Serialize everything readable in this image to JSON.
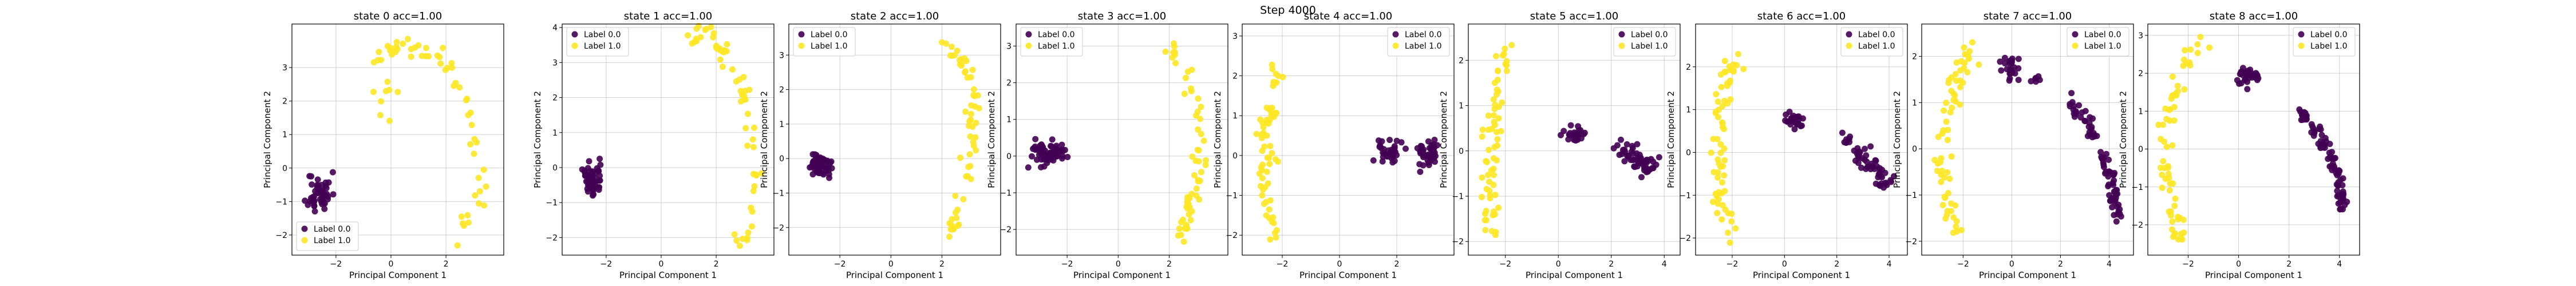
{
  "figure": {
    "suptitle": "Step 4000"
  },
  "colors": {
    "label_0": "#440154",
    "label_1": "#fde725",
    "grid": "#b0b0b0",
    "frame": "#000000",
    "legend_edge": "#cccccc"
  },
  "chart_data": [
    {
      "type": "scatter",
      "title": "state 0 acc=1.00",
      "xlabel": "Principal Component 1",
      "ylabel": "Principal Component 2",
      "xlim": [
        -3.6,
        4.1
      ],
      "ylim": [
        -2.6,
        4.3
      ],
      "xticks": [
        -2,
        0,
        2
      ],
      "yticks": [
        -2,
        -1,
        0,
        1,
        2,
        3
      ],
      "grid": true,
      "legend": {
        "placement": "lower-left",
        "entries": [
          "Label 0.0",
          "Label 1.0"
        ]
      },
      "series": [
        {
          "name": "Label 0.0",
          "color": "#440154",
          "clusters": [
            {
              "cx": -2.6,
              "cy": -0.75,
              "sx": 0.3,
              "sy": 0.45,
              "n": 48,
              "seed": 11
            }
          ]
        },
        {
          "name": "Label 1.0",
          "color": "#fde725",
          "clusters": [
            {
              "path": [
                [
                  -0.5,
                  3.2
                ],
                [
                  0.4,
                  3.7
                ],
                [
                  1.3,
                  3.4
                ],
                [
                  2.2,
                  3.0
                ],
                [
                  2.9,
                  1.6
                ],
                [
                  3.3,
                  0.3
                ],
                [
                  3.2,
                  -1.0
                ],
                [
                  2.6,
                  -2.0
                ]
              ],
              "spread": 0.25,
              "n": 55,
              "seed": 21
            },
            {
              "cx": -0.3,
              "cy": 2.2,
              "sx": 0.35,
              "sy": 0.6,
              "n": 8,
              "seed": 22
            }
          ]
        }
      ]
    },
    {
      "type": "scatter",
      "title": "state 1 acc=1.00",
      "xlabel": "Principal Component 1",
      "ylabel": "Principal Component 2",
      "xlim": [
        -3.6,
        4.1
      ],
      "ylim": [
        -2.5,
        4.1
      ],
      "xticks": [
        -2,
        0,
        2
      ],
      "yticks": [
        -2,
        -1,
        0,
        1,
        2,
        3,
        4
      ],
      "grid": true,
      "legend": {
        "placement": "upper-left",
        "entries": [
          "Label 0.0",
          "Label 1.0"
        ]
      },
      "series": [
        {
          "name": "Label 0.0",
          "color": "#440154",
          "clusters": [
            {
              "cx": -2.55,
              "cy": -0.35,
              "sx": 0.28,
              "sy": 0.35,
              "n": 48,
              "seed": 31
            }
          ]
        },
        {
          "name": "Label 1.0",
          "color": "#fde725",
          "clusters": [
            {
              "path": [
                [
                  0.8,
                  3.7
                ],
                [
                  1.6,
                  3.8
                ],
                [
                  2.3,
                  3.3
                ],
                [
                  2.9,
                  2.3
                ],
                [
                  3.3,
                  1.0
                ],
                [
                  3.4,
                  -0.5
                ],
                [
                  3.2,
                  -1.8
                ],
                [
                  2.6,
                  -2.3
                ]
              ],
              "spread": 0.25,
              "n": 60,
              "seed": 41
            }
          ]
        }
      ]
    },
    {
      "type": "scatter",
      "title": "state 2 acc=1.00",
      "xlabel": "Principal Component 1",
      "ylabel": "Principal Component 2",
      "xlim": [
        -4.0,
        4.3
      ],
      "ylim": [
        -2.8,
        3.9
      ],
      "xticks": [
        -2,
        0,
        2
      ],
      "yticks": [
        -2,
        -1,
        0,
        1,
        2,
        3
      ],
      "grid": true,
      "legend": {
        "placement": "upper-left",
        "entries": [
          "Label 0.0",
          "Label 1.0"
        ]
      },
      "series": [
        {
          "name": "Label 0.0",
          "color": "#440154",
          "clusters": [
            {
              "cx": -2.8,
              "cy": -0.2,
              "sx": 0.35,
              "sy": 0.25,
              "n": 60,
              "seed": 51
            }
          ]
        },
        {
          "name": "Label 1.0",
          "color": "#fde725",
          "clusters": [
            {
              "path": [
                [
                  2.0,
                  3.3
                ],
                [
                  2.7,
                  3.0
                ],
                [
                  3.2,
                  2.0
                ],
                [
                  3.3,
                  0.8
                ],
                [
                  3.0,
                  -0.5
                ],
                [
                  2.6,
                  -1.5
                ],
                [
                  2.2,
                  -2.3
                ]
              ],
              "spread": 0.25,
              "n": 60,
              "seed": 61
            }
          ]
        }
      ]
    },
    {
      "type": "scatter",
      "title": "state 3 acc=1.00",
      "xlabel": "Principal Component 1",
      "ylabel": "Principal Component 2",
      "xlim": [
        -4.0,
        4.3
      ],
      "ylim": [
        -2.7,
        3.6
      ],
      "xticks": [
        -2,
        0,
        2
      ],
      "yticks": [
        -2,
        -1,
        0,
        1,
        2,
        3
      ],
      "grid": true,
      "legend": {
        "placement": "upper-left",
        "entries": [
          "Label 0.0",
          "Label 1.0"
        ]
      },
      "series": [
        {
          "name": "Label 0.0",
          "color": "#440154",
          "clusters": [
            {
              "cx": -2.7,
              "cy": 0.05,
              "sx": 0.55,
              "sy": 0.25,
              "n": 70,
              "seed": 71
            }
          ]
        },
        {
          "name": "Label 1.0",
          "color": "#fde725",
          "clusters": [
            {
              "path": [
                [
                  2.0,
                  2.9
                ],
                [
                  2.8,
                  2.3
                ],
                [
                  3.1,
                  1.0
                ],
                [
                  3.2,
                  -0.5
                ],
                [
                  2.8,
                  -1.5
                ],
                [
                  2.4,
                  -2.3
                ]
              ],
              "spread": 0.25,
              "n": 60,
              "seed": 81
            }
          ]
        }
      ]
    },
    {
      "type": "scatter",
      "title": "state 4 acc=1.00",
      "xlabel": "Principal Component 1",
      "ylabel": "Principal Component 2",
      "xlim": [
        -3.4,
        4.0
      ],
      "ylim": [
        -2.5,
        3.3
      ],
      "xticks": [
        -2,
        0,
        2
      ],
      "yticks": [
        -2,
        -1,
        0,
        1,
        2,
        3
      ],
      "grid": true,
      "legend": {
        "placement": "upper-right",
        "entries": [
          "Label 0.0",
          "Label 1.0"
        ]
      },
      "series": [
        {
          "name": "Label 0.0",
          "color": "#440154",
          "clusters": [
            {
              "cx": 1.7,
              "cy": 0.1,
              "sx": 0.3,
              "sy": 0.2,
              "n": 35,
              "seed": 91
            },
            {
              "cx": 3.1,
              "cy": 0.0,
              "sx": 0.35,
              "sy": 0.25,
              "n": 40,
              "seed": 92
            }
          ]
        },
        {
          "name": "Label 1.0",
          "color": "#fde725",
          "clusters": [
            {
              "path": [
                [
                  -2.1,
                  2.8
                ],
                [
                  -2.3,
                  1.5
                ],
                [
                  -2.6,
                  0.5
                ],
                [
                  -2.7,
                  -0.5
                ],
                [
                  -2.5,
                  -1.5
                ],
                [
                  -2.2,
                  -2.2
                ]
              ],
              "spread": 0.25,
              "n": 65,
              "seed": 101
            }
          ]
        }
      ]
    },
    {
      "type": "scatter",
      "title": "state 5 acc=1.00",
      "xlabel": "Principal Component 1",
      "ylabel": "Principal Component 2",
      "xlim": [
        -3.4,
        4.6
      ],
      "ylim": [
        -2.3,
        2.8
      ],
      "xticks": [
        -2,
        0,
        2,
        4
      ],
      "yticks": [
        -2,
        -1,
        0,
        1,
        2
      ],
      "grid": true,
      "legend": {
        "placement": "upper-right",
        "entries": [
          "Label 0.0",
          "Label 1.0"
        ]
      },
      "series": [
        {
          "name": "Label 0.0",
          "color": "#440154",
          "clusters": [
            {
              "cx": 0.6,
              "cy": 0.35,
              "sx": 0.3,
              "sy": 0.15,
              "n": 30,
              "seed": 111
            },
            {
              "path": [
                [
                  2.3,
                  0.1
                ],
                [
                  3.0,
                  -0.2
                ],
                [
                  3.6,
                  -0.4
                ]
              ],
              "spread": 0.25,
              "n": 55,
              "seed": 112
            }
          ]
        },
        {
          "name": "Label 1.0",
          "color": "#fde725",
          "clusters": [
            {
              "path": [
                [
                  -2.0,
                  2.4
                ],
                [
                  -2.2,
                  1.3
                ],
                [
                  -2.6,
                  0.2
                ],
                [
                  -2.7,
                  -0.8
                ],
                [
                  -2.3,
                  -1.8
                ]
              ],
              "spread": 0.3,
              "n": 65,
              "seed": 121
            }
          ]
        }
      ]
    },
    {
      "type": "scatter",
      "title": "state 6 acc=1.00",
      "xlabel": "Principal Component 1",
      "ylabel": "Principal Component 2",
      "xlim": [
        -3.4,
        4.7
      ],
      "ylim": [
        -2.4,
        3.0
      ],
      "xticks": [
        -2,
        0,
        2,
        4
      ],
      "yticks": [
        -2,
        -1,
        0,
        1,
        2
      ],
      "grid": true,
      "legend": {
        "placement": "upper-right",
        "entries": [
          "Label 0.0",
          "Label 1.0"
        ]
      },
      "series": [
        {
          "name": "Label 0.0",
          "color": "#440154",
          "clusters": [
            {
              "cx": 0.3,
              "cy": 0.75,
              "sx": 0.3,
              "sy": 0.12,
              "n": 25,
              "seed": 131
            },
            {
              "path": [
                [
                  2.3,
                  0.3
                ],
                [
                  3.0,
                  -0.1
                ],
                [
                  3.6,
                  -0.4
                ],
                [
                  3.9,
                  -0.7
                ]
              ],
              "spread": 0.22,
              "n": 55,
              "seed": 132
            }
          ]
        },
        {
          "name": "Label 1.0",
          "color": "#fde725",
          "clusters": [
            {
              "path": [
                [
                  -1.9,
                  2.4
                ],
                [
                  -2.3,
                  1.2
                ],
                [
                  -2.6,
                  0.0
                ],
                [
                  -2.5,
                  -1.0
                ],
                [
                  -2.1,
                  -2.0
                ]
              ],
              "spread": 0.3,
              "n": 65,
              "seed": 141
            }
          ]
        }
      ]
    },
    {
      "type": "scatter",
      "title": "state 7 acc=1.00",
      "xlabel": "Principal Component 1",
      "ylabel": "Principal Component 2",
      "xlim": [
        -3.7,
        5.0
      ],
      "ylim": [
        -2.3,
        2.7
      ],
      "xticks": [
        -2,
        0,
        2,
        4
      ],
      "yticks": [
        -2,
        -1,
        0,
        1,
        2
      ],
      "grid": true,
      "legend": {
        "placement": "upper-right",
        "entries": [
          "Label 0.0",
          "Label 1.0"
        ]
      },
      "series": [
        {
          "name": "Label 0.0",
          "color": "#440154",
          "clusters": [
            {
              "cx": 0.0,
              "cy": 1.75,
              "sx": 0.25,
              "sy": 0.15,
              "n": 25,
              "seed": 151
            },
            {
              "cx": 1.0,
              "cy": 1.5,
              "sx": 0.15,
              "sy": 0.1,
              "n": 6,
              "seed": 152
            },
            {
              "path": [
                [
                  2.4,
                  1.0
                ],
                [
                  3.2,
                  0.5
                ],
                [
                  3.8,
                  -0.2
                ],
                [
                  4.2,
                  -1.0
                ],
                [
                  4.4,
                  -1.5
                ]
              ],
              "spread": 0.18,
              "n": 80,
              "seed": 153
            }
          ]
        },
        {
          "name": "Label 1.0",
          "color": "#fde725",
          "clusters": [
            {
              "path": [
                [
                  -1.7,
                  2.2
                ],
                [
                  -2.3,
                  1.4
                ],
                [
                  -2.8,
                  0.5
                ],
                [
                  -2.9,
                  -0.5
                ],
                [
                  -2.6,
                  -1.2
                ],
                [
                  -2.2,
                  -2.0
                ]
              ],
              "spread": 0.3,
              "n": 65,
              "seed": 161
            }
          ]
        }
      ]
    },
    {
      "type": "scatter",
      "title": "state 8 acc=1.00",
      "xlabel": "Principal Component 1",
      "ylabel": "Principal Component 2",
      "xlim": [
        -3.6,
        4.8
      ],
      "ylim": [
        -2.8,
        3.3
      ],
      "xticks": [
        -2,
        0,
        2,
        4
      ],
      "yticks": [
        -2,
        -1,
        0,
        1,
        2,
        3
      ],
      "grid": true,
      "legend": {
        "placement": "upper-right",
        "entries": [
          "Label 0.0",
          "Label 1.0"
        ]
      },
      "series": [
        {
          "name": "Label 0.0",
          "color": "#440154",
          "clusters": [
            {
              "cx": 0.3,
              "cy": 1.9,
              "sx": 0.35,
              "sy": 0.15,
              "n": 30,
              "seed": 171
            },
            {
              "path": [
                [
                  2.5,
                  1.0
                ],
                [
                  3.2,
                  0.4
                ],
                [
                  3.7,
                  -0.3
                ],
                [
                  4.0,
                  -1.0
                ],
                [
                  4.1,
                  -1.6
                ]
              ],
              "spread": 0.17,
              "n": 80,
              "seed": 172
            }
          ]
        },
        {
          "name": "Label 1.0",
          "color": "#fde725",
          "clusters": [
            {
              "path": [
                [
                  -1.6,
                  2.8
                ],
                [
                  -2.3,
                  1.8
                ],
                [
                  -2.9,
                  0.6
                ],
                [
                  -3.0,
                  -0.6
                ],
                [
                  -2.7,
                  -1.6
                ],
                [
                  -2.3,
                  -2.5
                ]
              ],
              "spread": 0.3,
              "n": 65,
              "seed": 181
            }
          ]
        }
      ]
    }
  ]
}
